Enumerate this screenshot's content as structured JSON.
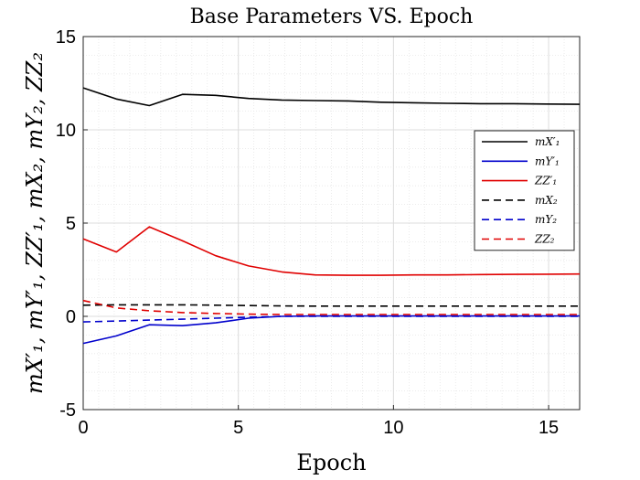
{
  "chart_data": {
    "type": "line",
    "title": "Base Parameters VS. Epoch",
    "xlabel": "Epoch",
    "ylabel": "mX′₁, mY′₁, ZZ′₁, mX₂, mY₂, ZZ₂",
    "xlim": [
      0,
      16
    ],
    "ylim": [
      -5,
      15
    ],
    "xticks": [
      0,
      5,
      10,
      15
    ],
    "yticks": [
      -5,
      0,
      5,
      10,
      15
    ],
    "xtick_labels": [
      "0",
      "5",
      "10",
      "15"
    ],
    "ytick_labels": [
      "-5",
      "0",
      "5",
      "10",
      "15"
    ],
    "grid": true,
    "minor_grid": true,
    "legend": "right",
    "x": [
      0,
      1.07,
      2.13,
      3.2,
      4.27,
      5.33,
      6.4,
      7.47,
      8.53,
      9.6,
      10.67,
      11.73,
      12.8,
      13.87,
      14.93,
      16
    ],
    "series": [
      {
        "name": "mX′₁",
        "color": "#000000",
        "dash": "solid",
        "values": [
          12.25,
          11.65,
          11.3,
          11.9,
          11.85,
          11.68,
          11.6,
          11.57,
          11.55,
          11.48,
          11.45,
          11.42,
          11.4,
          11.4,
          11.38,
          11.37
        ]
      },
      {
        "name": "mY′₁",
        "color": "#0000cc",
        "dash": "solid",
        "values": [
          -1.45,
          -1.05,
          -0.45,
          -0.5,
          -0.35,
          -0.1,
          0.0,
          0.02,
          0.02,
          0.02,
          0.02,
          0.02,
          0.02,
          0.02,
          0.02,
          0.02
        ]
      },
      {
        "name": "ZZ′₁",
        "color": "#e00000",
        "dash": "solid",
        "values": [
          4.15,
          3.45,
          4.8,
          4.05,
          3.25,
          2.7,
          2.38,
          2.22,
          2.2,
          2.2,
          2.22,
          2.22,
          2.24,
          2.25,
          2.26,
          2.27
        ]
      },
      {
        "name": "mX₂",
        "color": "#000000",
        "dash": "dashed",
        "values": [
          0.6,
          0.62,
          0.62,
          0.62,
          0.6,
          0.58,
          0.56,
          0.55,
          0.55,
          0.55,
          0.55,
          0.55,
          0.55,
          0.55,
          0.55,
          0.55
        ]
      },
      {
        "name": "mY₂",
        "color": "#0000cc",
        "dash": "dashed",
        "values": [
          -0.3,
          -0.25,
          -0.2,
          -0.15,
          -0.1,
          -0.05,
          0.0,
          0.0,
          0.0,
          0.0,
          0.0,
          0.0,
          0.0,
          0.0,
          0.0,
          0.0
        ]
      },
      {
        "name": "ZZ₂",
        "color": "#e00000",
        "dash": "dashed",
        "values": [
          0.85,
          0.45,
          0.3,
          0.2,
          0.15,
          0.12,
          0.1,
          0.1,
          0.1,
          0.1,
          0.1,
          0.1,
          0.1,
          0.1,
          0.1,
          0.1
        ]
      }
    ]
  }
}
